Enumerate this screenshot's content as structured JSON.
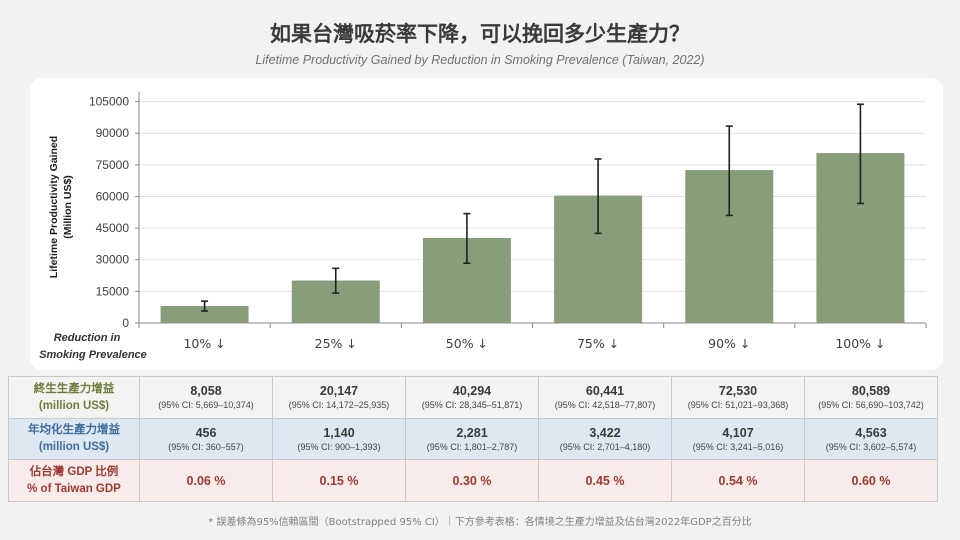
{
  "title": "如果台灣吸菸率下降，可以挽回多少生產力？",
  "subtitle": "Lifetime Productivity Gained by Reduction in Smoking Prevalence (Taiwan, 2022)",
  "colors": {
    "bar": "#889d7a",
    "error_bar": "#222222",
    "grid": "#e2e2e2"
  },
  "chart_data": {
    "type": "bar",
    "categories": [
      "10% ↓",
      "25% ↓",
      "50% ↓",
      "75% ↓",
      "90% ↓",
      "100% ↓"
    ],
    "values": [
      8058,
      20147,
      40294,
      60441,
      72530,
      80589
    ],
    "ci_low": [
      5669,
      14172,
      28345,
      42518,
      51021,
      56690
    ],
    "ci_high": [
      10374,
      25935,
      51871,
      77807,
      93368,
      103742
    ],
    "ylabel_line1": "Lifetime Productivity Gained",
    "ylabel_line2": "(Million US$)",
    "xlabel_line1": "Reduction in",
    "xlabel_line2": "Smoking Prevalence",
    "ylim": [
      0,
      105000
    ],
    "yticks": [
      0,
      15000,
      30000,
      45000,
      60000,
      75000,
      90000,
      105000
    ],
    "grid": true
  },
  "table": {
    "lifetime": {
      "head1": "終生生產力增益",
      "head2": "(million US$)",
      "cells": [
        {
          "value": "8,058",
          "ci": "(95% CI: 5,669–10,374)"
        },
        {
          "value": "20,147",
          "ci": "(95% CI: 14,172–25,935)"
        },
        {
          "value": "40,294",
          "ci": "(95% CI: 28,345–51,871)"
        },
        {
          "value": "60,441",
          "ci": "(95% CI: 42,518–77,807)"
        },
        {
          "value": "72,530",
          "ci": "(95% CI: 51,021–93,368)"
        },
        {
          "value": "80,589",
          "ci": "(95% CI: 56,690–103,742)"
        }
      ]
    },
    "annual": {
      "head1": "年均化生產力增益",
      "head2": "(million US$)",
      "cells": [
        {
          "value": "456",
          "ci": "(95% CI: 360–557)"
        },
        {
          "value": "1,140",
          "ci": "(95% CI: 900–1,393)"
        },
        {
          "value": "2,281",
          "ci": "(95% CI: 1,801–2,787)"
        },
        {
          "value": "3,422",
          "ci": "(95% CI: 2,701–4,180)"
        },
        {
          "value": "4,107",
          "ci": "(95% CI: 3,241–5,016)"
        },
        {
          "value": "4,563",
          "ci": "(95% CI: 3,602–5,574)"
        }
      ]
    },
    "gdp": {
      "head1": "佔台灣 GDP 比例",
      "head2": "% of Taiwan GDP",
      "cells": [
        "0.06 %",
        "0.15 %",
        "0.30 %",
        "0.45 %",
        "0.54 %",
        "0.60 %"
      ]
    }
  },
  "footnote": "* 誤差條為95%信賴區間（Bootstrapped 95% CI）｜下方參考表格：各情境之生產力增益及佔台灣2022年GDP之百分比"
}
